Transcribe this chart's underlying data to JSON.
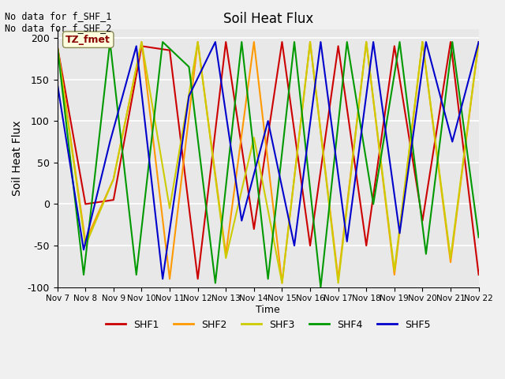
{
  "title": "Soil Heat Flux",
  "ylabel": "Soil Heat Flux",
  "xlabel": "Time",
  "ylim": [
    -100,
    210
  ],
  "annotation_text": "No data for f_SHF_1\nNo data for f_SHF_2",
  "legend_label": "TZ_fmet",
  "series_colors": {
    "SHF1": "#cc0000",
    "SHF2": "#ff9900",
    "SHF3": "#cccc00",
    "SHF4": "#009900",
    "SHF5": "#0000cc"
  },
  "x_tick_labels": [
    "Nov 7",
    "Nov 8",
    "Nov 9",
    "Nov 10",
    "Nov 11",
    "Nov 12",
    "Nov 13",
    "Nov 14",
    "Nov 15",
    "Nov 16",
    "Nov 17",
    "Nov 18",
    "Nov 19",
    "Nov 20",
    "Nov 21",
    "Nov 22"
  ],
  "SHF1": [
    190,
    0,
    5,
    190,
    185,
    -90,
    195,
    -30,
    195,
    -50,
    190,
    -50,
    190,
    -20,
    195,
    -85
  ],
  "SHF2": [
    190,
    -45,
    30,
    195,
    -90,
    195,
    -60,
    195,
    -95,
    195,
    -90,
    195,
    -85,
    195,
    -70,
    195
  ],
  "SHF3": [
    190,
    -50,
    30,
    195,
    -5,
    195,
    -65,
    80,
    -95,
    195,
    -95,
    195,
    -80,
    195,
    -65,
    195
  ],
  "SHF4": [
    190,
    -85,
    195,
    -85,
    195,
    165,
    -95,
    195,
    -90,
    195,
    -100,
    195,
    0,
    195,
    -60,
    195,
    -40
  ],
  "SHF5": [
    145,
    -55,
    75,
    190,
    -90,
    130,
    195,
    -20,
    100,
    -50,
    195,
    -45,
    195,
    -35,
    195,
    75,
    195
  ],
  "background_color": "#e8e8e8",
  "grid_color": "white",
  "fig_bg": "#f0f0f0"
}
